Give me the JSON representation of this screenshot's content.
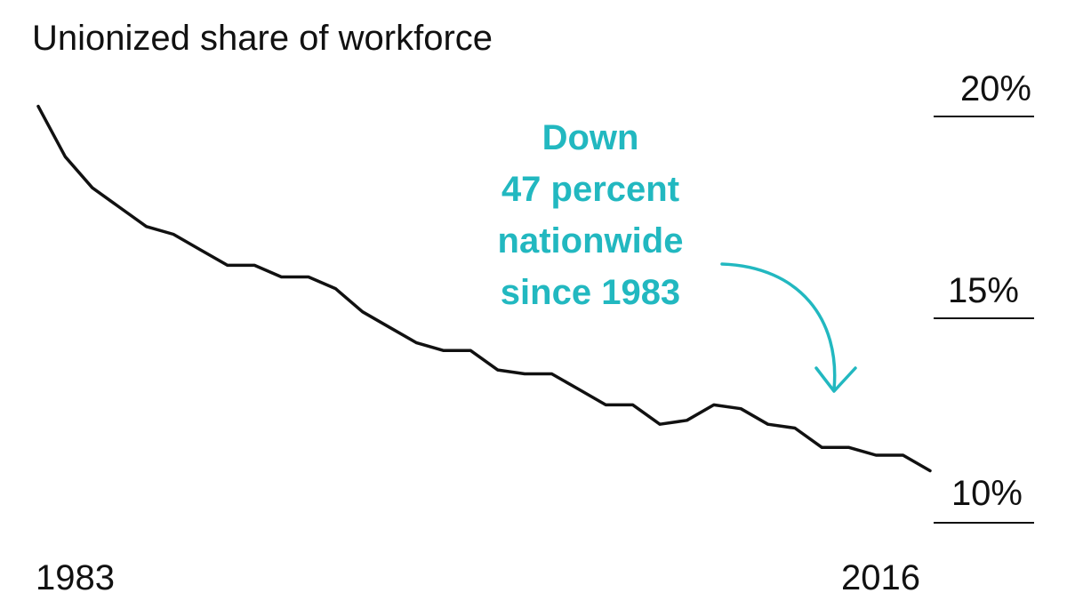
{
  "colors": {
    "line": "#111111",
    "accent": "#22b8c0",
    "gridline": "#111111"
  },
  "chart_data": {
    "type": "line",
    "title": "Unionized share of workforce",
    "xlabel": "",
    "ylabel": "",
    "x_tick_labels": [
      "1983",
      "2016"
    ],
    "y_tick_labels": [
      "20%",
      "15%",
      "10%"
    ],
    "y_ticks": [
      20,
      15,
      10
    ],
    "xlim": [
      1983,
      2016
    ],
    "ylim": [
      10,
      20
    ],
    "grid": "right-side tick lines only",
    "x": [
      1983,
      1984,
      1985,
      1986,
      1987,
      1988,
      1989,
      1990,
      1991,
      1992,
      1993,
      1994,
      1995,
      1996,
      1997,
      1998,
      1999,
      2000,
      2001,
      2002,
      2003,
      2004,
      2005,
      2006,
      2007,
      2008,
      2009,
      2010,
      2011,
      2012,
      2013,
      2014,
      2015,
      2016
    ],
    "values": [
      20.1,
      18.8,
      18.0,
      17.5,
      17.0,
      16.8,
      16.4,
      16.0,
      16.0,
      15.7,
      15.7,
      15.4,
      14.8,
      14.4,
      14.0,
      13.8,
      13.8,
      13.3,
      13.2,
      13.2,
      12.8,
      12.4,
      12.4,
      11.9,
      12.0,
      12.4,
      12.3,
      11.9,
      11.8,
      11.3,
      11.3,
      11.1,
      11.1,
      10.7
    ],
    "annotation": {
      "lines": [
        "Down",
        "47 percent",
        "nationwide",
        "since 1983"
      ]
    }
  }
}
